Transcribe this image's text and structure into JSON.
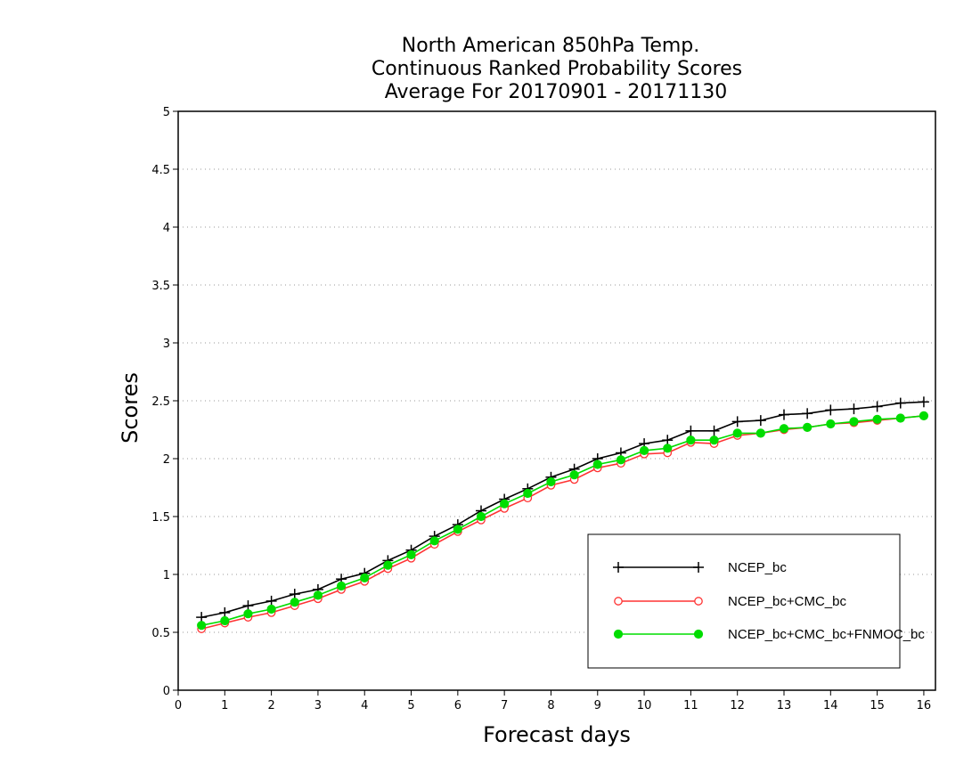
{
  "chart_data": {
    "type": "line",
    "title": [
      "North American 850hPa Temp.",
      "Continuous Ranked Probability Scores",
      "Average For 20170901 - 20171130"
    ],
    "xlabel": "Forecast days",
    "ylabel": "Scores",
    "xlim": [
      0,
      16.25
    ],
    "ylim": [
      0,
      5
    ],
    "xticks": [
      0,
      1,
      2,
      3,
      4,
      5,
      6,
      7,
      8,
      9,
      10,
      11,
      12,
      13,
      14,
      15,
      16
    ],
    "yticks": [
      0,
      0.5,
      1,
      1.5,
      2,
      2.5,
      3,
      3.5,
      4,
      4.5,
      5
    ],
    "ytick_labels": [
      "0",
      "0.5",
      "1",
      "1.5",
      "2",
      "2.5",
      "3",
      "3.5",
      "4",
      "4.5",
      "5"
    ],
    "grid": true,
    "legend_position": "bottom-right",
    "x": [
      0.5,
      1,
      1.5,
      2,
      2.5,
      3,
      3.5,
      4,
      4.5,
      5,
      5.5,
      6,
      6.5,
      7,
      7.5,
      8,
      8.5,
      9,
      9.5,
      10,
      10.5,
      11,
      11.5,
      12,
      12.5,
      13,
      13.5,
      14,
      14.5,
      15,
      15.5,
      16
    ],
    "series": [
      {
        "name": "NCEP_bc",
        "color": "#000000",
        "marker": "plus",
        "values": [
          0.63,
          0.67,
          0.73,
          0.77,
          0.83,
          0.87,
          0.96,
          1.01,
          1.12,
          1.21,
          1.33,
          1.43,
          1.55,
          1.65,
          1.74,
          1.84,
          1.91,
          2.0,
          2.05,
          2.13,
          2.16,
          2.24,
          2.24,
          2.32,
          2.33,
          2.38,
          2.39,
          2.42,
          2.43,
          2.45,
          2.48,
          2.49
        ]
      },
      {
        "name": "NCEP_bc+CMC_bc",
        "color": "#ff3333",
        "marker": "open-circle",
        "values": [
          0.53,
          0.58,
          0.63,
          0.67,
          0.73,
          0.79,
          0.87,
          0.94,
          1.05,
          1.14,
          1.26,
          1.37,
          1.47,
          1.57,
          1.66,
          1.77,
          1.82,
          1.92,
          1.96,
          2.04,
          2.05,
          2.14,
          2.13,
          2.2,
          2.22,
          2.25,
          2.27,
          2.3,
          2.31,
          2.33,
          2.35,
          2.37
        ]
      },
      {
        "name": "NCEP_bc+CMC_bc+FNMOC_bc",
        "color": "#00dd00",
        "marker": "filled-circle",
        "values": [
          0.56,
          0.6,
          0.66,
          0.7,
          0.76,
          0.82,
          0.9,
          0.97,
          1.08,
          1.17,
          1.29,
          1.39,
          1.5,
          1.61,
          1.7,
          1.8,
          1.86,
          1.95,
          1.99,
          2.07,
          2.09,
          2.16,
          2.16,
          2.22,
          2.22,
          2.26,
          2.27,
          2.3,
          2.32,
          2.34,
          2.35,
          2.37
        ]
      }
    ]
  }
}
